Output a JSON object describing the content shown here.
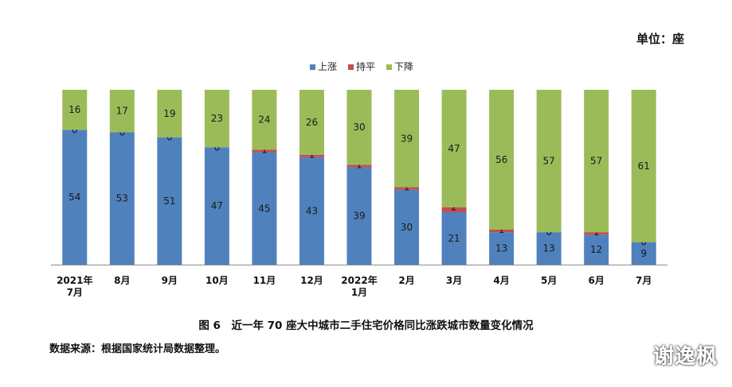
{
  "unit_label": "单位：座",
  "caption": "图 6　近一年 70 座大中城市二手住宅价格同比涨跌城市数量变化情况",
  "source": "数据来源：根据国家统计局数据整理。",
  "watermark": "谢逸枫",
  "colors": {
    "up": "#4F81BD",
    "flat": "#C0504D",
    "down": "#9BBB59"
  },
  "chart_data": {
    "type": "bar",
    "stacked": true,
    "categories": [
      [
        "2021年",
        "7月"
      ],
      [
        "8月"
      ],
      [
        "9月"
      ],
      [
        "10月"
      ],
      [
        "11月"
      ],
      [
        "12月"
      ],
      [
        "2022年",
        "1月"
      ],
      [
        "2月"
      ],
      [
        "3月"
      ],
      [
        "4月"
      ],
      [
        "5月"
      ],
      [
        "6月"
      ],
      [
        "7月"
      ]
    ],
    "series": [
      {
        "name": "上涨",
        "key": "up",
        "values": [
          54,
          53,
          51,
          47,
          45,
          43,
          39,
          30,
          21,
          13,
          13,
          12,
          9
        ]
      },
      {
        "name": "持平",
        "key": "flat",
        "values": [
          0,
          0,
          0,
          0,
          1,
          1,
          1,
          1,
          2,
          1,
          0,
          1,
          0
        ]
      },
      {
        "name": "下降",
        "key": "down",
        "values": [
          16,
          17,
          19,
          23,
          24,
          26,
          30,
          39,
          47,
          56,
          57,
          57,
          61
        ]
      }
    ],
    "ylim": [
      0,
      70
    ],
    "legend": "top-center",
    "grid": false
  }
}
